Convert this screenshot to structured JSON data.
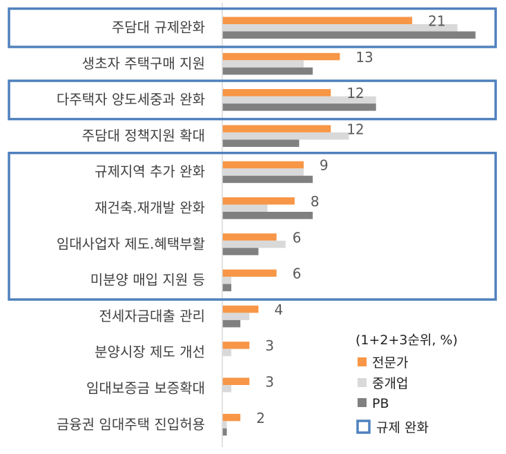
{
  "chart_data": {
    "type": "bar",
    "orientation": "horizontal",
    "note": "(1+2+3순위, %)",
    "categories": [
      "주담대 규제완화",
      "생초자 주택구매 지원",
      "다주택자 양도세중과 완화",
      "주담대 정책지원 확대",
      "규제지역 추가 완화",
      "재건축.재개발 완화",
      "임대사업자 제도.혜택부활",
      "미분양 매입 지원 등",
      "전세자금대출 관리",
      "분양시장 제도 개선",
      "임대보증금 보증확대",
      "금융권 임대주택 진입허용"
    ],
    "series": [
      {
        "name": "전문가",
        "color": "#F79646",
        "values": [
          21,
          13,
          12,
          12,
          9,
          8,
          6,
          6,
          4,
          3,
          3,
          2
        ]
      },
      {
        "name": "중개업",
        "color": "#D9D9D9",
        "values": [
          26,
          9,
          17,
          14,
          9,
          5,
          7,
          1,
          3,
          1,
          1,
          0.5
        ]
      },
      {
        "name": "PB",
        "color": "#808080",
        "values": [
          28,
          10,
          17,
          8.5,
          10,
          10,
          4,
          1,
          2,
          0,
          0,
          0.5
        ]
      }
    ],
    "data_labels": [
      "21",
      "13",
      "12",
      "12",
      "9",
      "8",
      "6",
      "6",
      "4",
      "3",
      "3",
      "2"
    ],
    "highlight_legend": "규제 완화",
    "highlight_color": "#4F81BD",
    "highlight_groups": [
      [
        0,
        0
      ],
      [
        2,
        2
      ],
      [
        4,
        7
      ]
    ],
    "xlim": [
      0,
      30
    ],
    "legend_position": "bottom-right",
    "grid": false
  }
}
